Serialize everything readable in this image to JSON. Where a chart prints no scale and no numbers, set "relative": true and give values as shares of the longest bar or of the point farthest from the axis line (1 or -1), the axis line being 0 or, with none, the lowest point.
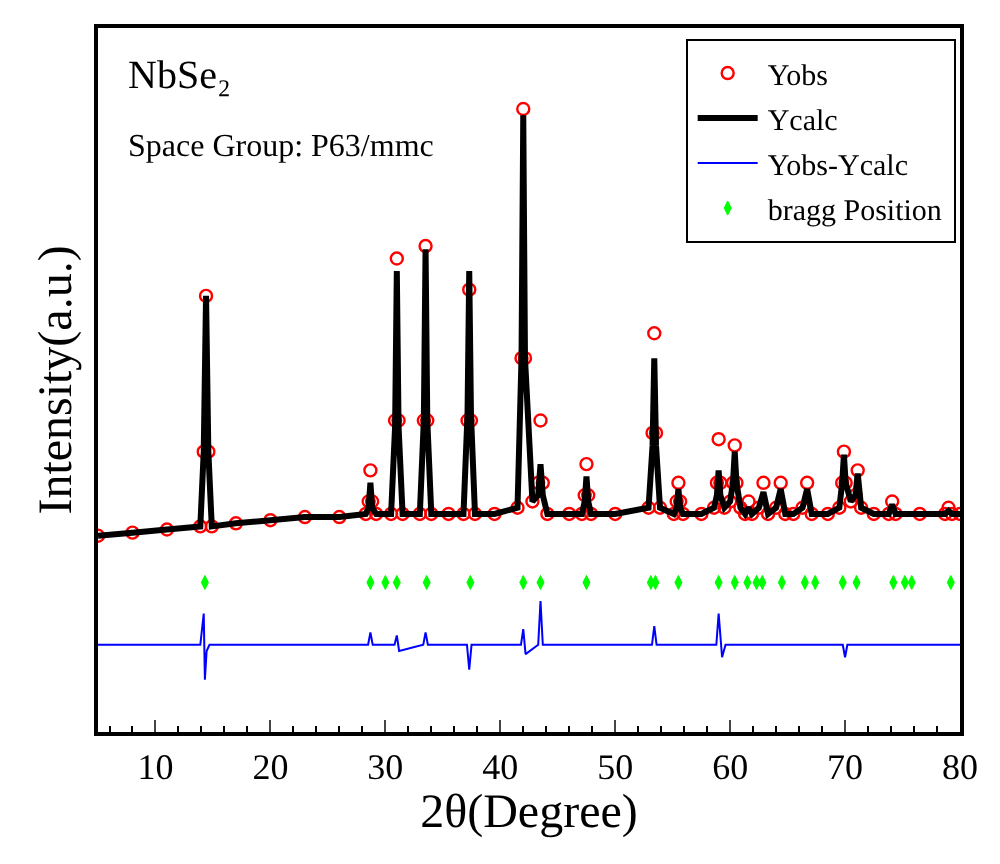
{
  "chart_data": {
    "type": "scatter",
    "xlabel": "2θ(Degree)",
    "ylabel": "Intensity(a.u.)",
    "relative": true,
    "annotations": [
      "NbSe₂",
      "Space Group: P63/mmc"
    ],
    "xlim": [
      5,
      80
    ],
    "xticks": [
      10,
      20,
      30,
      40,
      50,
      60,
      70,
      80
    ],
    "legend": "top right",
    "x": [
      5,
      8,
      11,
      13.9,
      14.2,
      14.4,
      14.6,
      14.9,
      17,
      20,
      23,
      26,
      28.3,
      28.55,
      28.7,
      28.85,
      29.2,
      30.5,
      30.85,
      31.0,
      31.15,
      31.5,
      33.0,
      33.35,
      33.5,
      33.65,
      34.0,
      35.5,
      36.8,
      37.15,
      37.3,
      37.45,
      37.8,
      39.5,
      41.5,
      41.85,
      42.0,
      42.15,
      42.8,
      43.3,
      43.5,
      43.7,
      44.1,
      46,
      47.1,
      47.35,
      47.5,
      47.65,
      47.9,
      50,
      52.9,
      53.25,
      53.4,
      53.55,
      53.9,
      55.1,
      55.35,
      55.5,
      55.65,
      55.9,
      57.5,
      58.6,
      58.85,
      59.0,
      59.15,
      59.5,
      60.0,
      60.25,
      60.4,
      60.55,
      60.9,
      61.3,
      61.6,
      61.9,
      62.5,
      62.9,
      63.3,
      64.0,
      64.4,
      64.8,
      65.5,
      66.3,
      66.7,
      67.1,
      68.5,
      69.5,
      69.75,
      69.9,
      70.05,
      70.5,
      70.9,
      71.1,
      71.4,
      72.5,
      73.8,
      74.1,
      74.4,
      76.5,
      78.7,
      79.0,
      79.3,
      80
    ],
    "series": [
      {
        "name": "Yobs",
        "type": "scatter",
        "marker": "circle",
        "color": "#ff0000",
        "values": [
          0.315,
          0.32,
          0.325,
          0.33,
          0.45,
          0.7,
          0.45,
          0.33,
          0.335,
          0.34,
          0.345,
          0.345,
          0.35,
          0.37,
          0.42,
          0.37,
          0.35,
          0.35,
          0.5,
          0.76,
          0.5,
          0.35,
          0.35,
          0.5,
          0.78,
          0.5,
          0.35,
          0.35,
          0.35,
          0.5,
          0.71,
          0.5,
          0.35,
          0.35,
          0.36,
          0.6,
          1.0,
          0.6,
          0.37,
          0.4,
          0.5,
          0.4,
          0.35,
          0.35,
          0.35,
          0.38,
          0.43,
          0.38,
          0.35,
          0.35,
          0.36,
          0.48,
          0.64,
          0.48,
          0.36,
          0.35,
          0.37,
          0.4,
          0.37,
          0.35,
          0.35,
          0.36,
          0.4,
          0.47,
          0.4,
          0.36,
          0.37,
          0.4,
          0.46,
          0.4,
          0.36,
          0.35,
          0.37,
          0.35,
          0.36,
          0.4,
          0.35,
          0.36,
          0.4,
          0.35,
          0.35,
          0.36,
          0.4,
          0.35,
          0.35,
          0.36,
          0.4,
          0.45,
          0.4,
          0.37,
          0.38,
          0.42,
          0.36,
          0.35,
          0.35,
          0.37,
          0.35,
          0.35,
          0.35,
          0.36,
          0.35,
          0.35
        ]
      },
      {
        "name": "Ycalc",
        "type": "line",
        "color": "#000000",
        "values": [
          0.315,
          0.32,
          0.325,
          0.33,
          0.45,
          0.7,
          0.45,
          0.33,
          0.335,
          0.34,
          0.345,
          0.345,
          0.35,
          0.36,
          0.4,
          0.36,
          0.35,
          0.35,
          0.49,
          0.74,
          0.49,
          0.35,
          0.35,
          0.5,
          0.775,
          0.5,
          0.35,
          0.35,
          0.35,
          0.51,
          0.74,
          0.51,
          0.35,
          0.35,
          0.36,
          0.6,
          0.99,
          0.6,
          0.37,
          0.38,
          0.43,
          0.38,
          0.35,
          0.35,
          0.35,
          0.37,
          0.41,
          0.37,
          0.35,
          0.35,
          0.36,
          0.46,
          0.6,
          0.46,
          0.36,
          0.35,
          0.36,
          0.39,
          0.36,
          0.35,
          0.35,
          0.36,
          0.38,
          0.42,
          0.38,
          0.36,
          0.37,
          0.4,
          0.45,
          0.4,
          0.36,
          0.35,
          0.36,
          0.35,
          0.36,
          0.385,
          0.35,
          0.36,
          0.39,
          0.35,
          0.35,
          0.36,
          0.39,
          0.35,
          0.35,
          0.36,
          0.4,
          0.445,
          0.4,
          0.37,
          0.38,
          0.415,
          0.36,
          0.35,
          0.35,
          0.365,
          0.35,
          0.35,
          0.35,
          0.355,
          0.35,
          0.35
        ]
      },
      {
        "name": "Yobs-Ycalc",
        "type": "line",
        "color": "#0000ff",
        "x": [
          5,
          13.9,
          14.2,
          14.3,
          14.45,
          14.7,
          28.5,
          28.7,
          28.9,
          30.8,
          31.0,
          31.2,
          33.3,
          33.5,
          33.7,
          37.1,
          37.3,
          37.5,
          41.8,
          42.0,
          42.2,
          43.3,
          43.5,
          43.7,
          53.2,
          53.4,
          53.6,
          58.8,
          59.0,
          59.3,
          59.6,
          69.8,
          70.0,
          70.2,
          80
        ],
        "values": [
          0.14,
          0.14,
          0.19,
          0.084,
          0.13,
          0.14,
          0.14,
          0.16,
          0.14,
          0.14,
          0.155,
          0.13,
          0.14,
          0.16,
          0.14,
          0.14,
          0.1,
          0.14,
          0.14,
          0.165,
          0.125,
          0.14,
          0.21,
          0.14,
          0.14,
          0.17,
          0.14,
          0.14,
          0.19,
          0.12,
          0.14,
          0.14,
          0.12,
          0.14,
          0.14
        ]
      },
      {
        "name": "bragg Position",
        "type": "scatter",
        "marker": "diamond",
        "color": "#00ff00",
        "x": [
          14.3,
          28.7,
          30.0,
          31.0,
          33.6,
          37.4,
          42.0,
          43.5,
          47.5,
          53.1,
          53.5,
          55.5,
          59.0,
          60.4,
          61.5,
          62.3,
          62.8,
          64.5,
          66.5,
          67.4,
          69.8,
          71.0,
          74.2,
          75.2,
          75.8,
          79.2
        ],
        "values": [
          0.24,
          0.24,
          0.24,
          0.24,
          0.24,
          0.24,
          0.24,
          0.24,
          0.24,
          0.24,
          0.24,
          0.24,
          0.24,
          0.24,
          0.24,
          0.24,
          0.24,
          0.24,
          0.24,
          0.24,
          0.24,
          0.24,
          0.24,
          0.24,
          0.24,
          0.24
        ]
      }
    ]
  }
}
